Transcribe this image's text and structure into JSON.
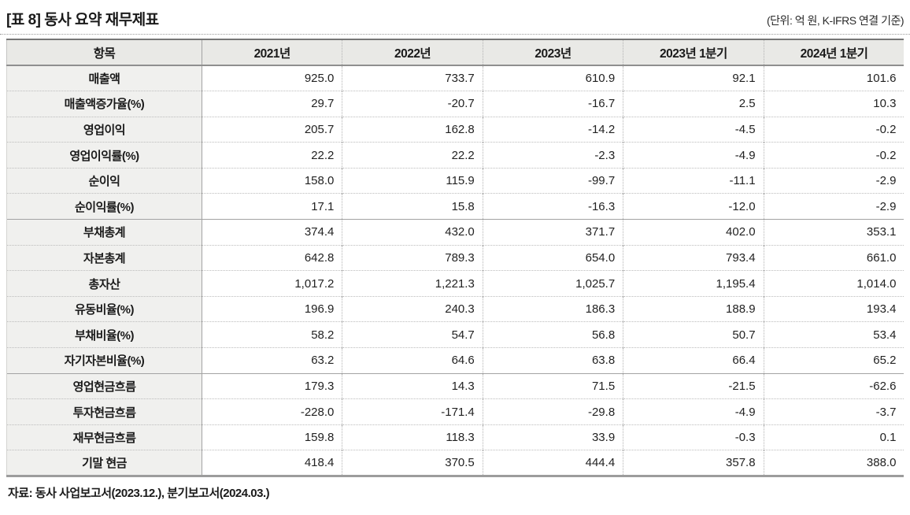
{
  "header": {
    "title": "[표 8] 동사 요약 재무제표",
    "unit_note": "(단위: 억 원, K-IFRS 연결 기준)"
  },
  "table": {
    "columns": [
      "항목",
      "2021년",
      "2022년",
      "2023년",
      "2023년 1분기",
      "2024년 1분기"
    ],
    "rows": [
      {
        "label": "매출액",
        "values": [
          "925.0",
          "733.7",
          "610.9",
          "92.1",
          "101.6"
        ],
        "group_start": false
      },
      {
        "label": "매출액증가율(%)",
        "values": [
          "29.7",
          "-20.7",
          "-16.7",
          "2.5",
          "10.3"
        ],
        "group_start": false
      },
      {
        "label": "영업이익",
        "values": [
          "205.7",
          "162.8",
          "-14.2",
          "-4.5",
          "-0.2"
        ],
        "group_start": false
      },
      {
        "label": "영업이익률(%)",
        "values": [
          "22.2",
          "22.2",
          "-2.3",
          "-4.9",
          "-0.2"
        ],
        "group_start": false
      },
      {
        "label": "순이익",
        "values": [
          "158.0",
          "115.9",
          "-99.7",
          "-11.1",
          "-2.9"
        ],
        "group_start": false
      },
      {
        "label": "순이익률(%)",
        "values": [
          "17.1",
          "15.8",
          "-16.3",
          "-12.0",
          "-2.9"
        ],
        "group_start": false
      },
      {
        "label": "부채총계",
        "values": [
          "374.4",
          "432.0",
          "371.7",
          "402.0",
          "353.1"
        ],
        "group_start": true
      },
      {
        "label": "자본총계",
        "values": [
          "642.8",
          "789.3",
          "654.0",
          "793.4",
          "661.0"
        ],
        "group_start": false
      },
      {
        "label": "총자산",
        "values": [
          "1,017.2",
          "1,221.3",
          "1,025.7",
          "1,195.4",
          "1,014.0"
        ],
        "group_start": false
      },
      {
        "label": "유동비율(%)",
        "values": [
          "196.9",
          "240.3",
          "186.3",
          "188.9",
          "193.4"
        ],
        "group_start": false
      },
      {
        "label": "부채비율(%)",
        "values": [
          "58.2",
          "54.7",
          "56.8",
          "50.7",
          "53.4"
        ],
        "group_start": false
      },
      {
        "label": "자기자본비율(%)",
        "values": [
          "63.2",
          "64.6",
          "63.8",
          "66.4",
          "65.2"
        ],
        "group_start": false
      },
      {
        "label": "영업현금흐름",
        "values": [
          "179.3",
          "14.3",
          "71.5",
          "-21.5",
          "-62.6"
        ],
        "group_start": true
      },
      {
        "label": "투자현금흐름",
        "values": [
          "-228.0",
          "-171.4",
          "-29.8",
          "-4.9",
          "-3.7"
        ],
        "group_start": false
      },
      {
        "label": "재무현금흐름",
        "values": [
          "159.8",
          "118.3",
          "33.9",
          "-0.3",
          "0.1"
        ],
        "group_start": false
      },
      {
        "label": "기말 현금",
        "values": [
          "418.4",
          "370.5",
          "444.4",
          "357.8",
          "388.0"
        ],
        "group_start": false
      }
    ]
  },
  "footer": {
    "source": "자료: 동사 사업보고서(2023.12.), 분기보고서(2024.03.)"
  }
}
